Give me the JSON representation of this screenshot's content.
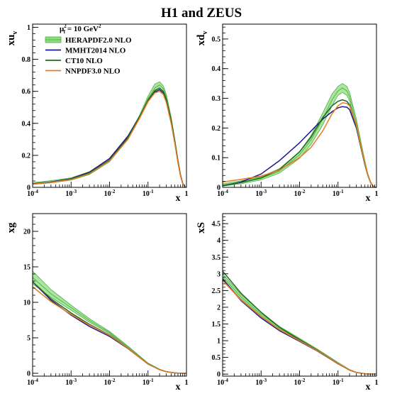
{
  "title": "H1 and ZEUS",
  "chart_data": [
    {
      "type": "line",
      "panel": "top-left",
      "ylabel": "xu_v",
      "xlabel": "x",
      "xscale": "log",
      "xlim": [
        0.0001,
        1
      ],
      "ylim": [
        0,
        1.02
      ],
      "x_ticks": [
        {
          "v": 0.0001,
          "b": "10",
          "e": "-4"
        },
        {
          "v": 0.001,
          "b": "10",
          "e": "-3"
        },
        {
          "v": 0.01,
          "b": "10",
          "e": "-2"
        },
        {
          "v": 0.1,
          "b": "10",
          "e": "-1"
        },
        {
          "v": 1,
          "b": "1",
          "e": ""
        }
      ],
      "y_ticks": [
        {
          "v": 0,
          "label": "0"
        },
        {
          "v": 0.2,
          "label": "0.2"
        },
        {
          "v": 0.4,
          "label": "0.4"
        },
        {
          "v": 0.6,
          "label": "0.6"
        },
        {
          "v": 0.8,
          "label": "0.8"
        },
        {
          "v": 1,
          "label": "1"
        }
      ],
      "legend": {
        "position": "top-left",
        "scale_base": "μ",
        "scale_sub": "f",
        "scale_sup": "2",
        "scale_tail": " = 10 GeV",
        "scale_tail_sup": "2",
        "entries": [
          "HERAPDF2.0 NLO",
          "MMHT2014 NLO",
          "CT10 NLO",
          "NNPDF3.0 NLO"
        ]
      },
      "x": [
        0.0001,
        0.0003,
        0.001,
        0.003,
        0.01,
        0.03,
        0.06,
        0.1,
        0.15,
        0.2,
        0.25,
        0.3,
        0.4,
        0.5,
        0.6,
        0.7,
        0.8,
        0.9,
        1.0
      ],
      "band": {
        "lower": [
          0.018,
          0.028,
          0.045,
          0.08,
          0.16,
          0.3,
          0.43,
          0.54,
          0.6,
          0.62,
          0.6,
          0.55,
          0.42,
          0.28,
          0.16,
          0.07,
          0.02,
          0.004,
          0
        ],
        "upper": [
          0.03,
          0.042,
          0.06,
          0.098,
          0.18,
          0.32,
          0.45,
          0.57,
          0.645,
          0.66,
          0.635,
          0.58,
          0.44,
          0.3,
          0.18,
          0.085,
          0.028,
          0.006,
          0
        ]
      },
      "series": [
        {
          "name": "HERAPDF2.0 NLO",
          "color": "#5ab44a",
          "values": [
            0.024,
            0.035,
            0.052,
            0.089,
            0.17,
            0.31,
            0.44,
            0.555,
            0.62,
            0.64,
            0.618,
            0.565,
            0.43,
            0.29,
            0.17,
            0.078,
            0.024,
            0.005,
            0
          ]
        },
        {
          "name": "MMHT2014 NLO",
          "color": "#1a1a8c",
          "values": [
            0.022,
            0.034,
            0.054,
            0.095,
            0.18,
            0.32,
            0.44,
            0.54,
            0.595,
            0.61,
            0.59,
            0.54,
            0.41,
            0.28,
            0.16,
            0.075,
            0.024,
            0.005,
            0
          ]
        },
        {
          "name": "CT10 NLO",
          "color": "#1e6b1e",
          "values": [
            0.02,
            0.032,
            0.051,
            0.09,
            0.17,
            0.31,
            0.44,
            0.545,
            0.605,
            0.62,
            0.6,
            0.55,
            0.42,
            0.285,
            0.165,
            0.076,
            0.024,
            0.005,
            0
          ]
        },
        {
          "name": "NNPDF3.0 NLO",
          "color": "#e87a22",
          "values": [
            0.02,
            0.031,
            0.048,
            0.085,
            0.165,
            0.3,
            0.43,
            0.535,
            0.59,
            0.6,
            0.58,
            0.53,
            0.4,
            0.27,
            0.155,
            0.07,
            0.022,
            0.004,
            0
          ]
        }
      ]
    },
    {
      "type": "line",
      "panel": "top-right",
      "ylabel": "xd_v",
      "xlabel": "x",
      "xscale": "log",
      "xlim": [
        0.0001,
        1
      ],
      "ylim": [
        0,
        0.55
      ],
      "x_ticks": [
        {
          "v": 0.0001,
          "b": "10",
          "e": "-4"
        },
        {
          "v": 0.001,
          "b": "10",
          "e": "-3"
        },
        {
          "v": 0.01,
          "b": "10",
          "e": "-2"
        },
        {
          "v": 0.1,
          "b": "10",
          "e": "-1"
        },
        {
          "v": 1,
          "b": "1",
          "e": ""
        }
      ],
      "y_ticks": [
        {
          "v": 0,
          "label": "0"
        },
        {
          "v": 0.1,
          "label": "0.1"
        },
        {
          "v": 0.2,
          "label": "0.2"
        },
        {
          "v": 0.3,
          "label": "0.3"
        },
        {
          "v": 0.4,
          "label": "0.4"
        },
        {
          "v": 0.5,
          "label": "0.5"
        }
      ],
      "x": [
        0.0001,
        0.0003,
        0.001,
        0.003,
        0.01,
        0.02,
        0.04,
        0.07,
        0.1,
        0.13,
        0.17,
        0.2,
        0.3,
        0.4,
        0.5,
        0.6,
        0.7,
        0.8,
        0.9,
        1.0
      ],
      "band": {
        "lower": [
          0.004,
          0.012,
          0.025,
          0.048,
          0.098,
          0.145,
          0.21,
          0.275,
          0.31,
          0.32,
          0.31,
          0.29,
          0.205,
          0.13,
          0.075,
          0.038,
          0.016,
          0.005,
          0.001,
          0
        ],
        "upper": [
          0.012,
          0.022,
          0.036,
          0.063,
          0.12,
          0.175,
          0.25,
          0.315,
          0.34,
          0.35,
          0.34,
          0.32,
          0.23,
          0.15,
          0.09,
          0.046,
          0.02,
          0.006,
          0.001,
          0
        ]
      },
      "series": [
        {
          "name": "HERAPDF2.0 NLO",
          "color": "#5ab44a",
          "values": [
            0.008,
            0.017,
            0.03,
            0.055,
            0.11,
            0.16,
            0.23,
            0.295,
            0.325,
            0.335,
            0.325,
            0.305,
            0.218,
            0.14,
            0.082,
            0.042,
            0.018,
            0.005,
            0.001,
            0
          ]
        },
        {
          "name": "MMHT2014 NLO",
          "color": "#1a1a8c",
          "values": [
            0.005,
            0.018,
            0.045,
            0.09,
            0.15,
            0.19,
            0.23,
            0.255,
            0.268,
            0.272,
            0.27,
            0.262,
            0.2,
            0.13,
            0.076,
            0.04,
            0.017,
            0.005,
            0.001,
            0
          ]
        },
        {
          "name": "CT10 NLO",
          "color": "#1e6b1e",
          "values": [
            0.006,
            0.016,
            0.032,
            0.06,
            0.12,
            0.17,
            0.235,
            0.275,
            0.29,
            0.295,
            0.29,
            0.278,
            0.205,
            0.132,
            0.078,
            0.04,
            0.017,
            0.005,
            0.001,
            0
          ]
        },
        {
          "name": "NNPDF3.0 NLO",
          "color": "#e87a22",
          "values": [
            0.018,
            0.027,
            0.038,
            0.058,
            0.1,
            0.135,
            0.19,
            0.248,
            0.275,
            0.285,
            0.283,
            0.275,
            0.21,
            0.135,
            0.08,
            0.042,
            0.018,
            0.005,
            0.001,
            0
          ]
        }
      ]
    },
    {
      "type": "line",
      "panel": "bottom-left",
      "ylabel": "xg",
      "xlabel": "x",
      "xscale": "log",
      "xlim": [
        0.0001,
        1
      ],
      "ylim": [
        -0.4,
        22.5
      ],
      "x_ticks": [
        {
          "v": 0.0001,
          "b": "10",
          "e": "-4"
        },
        {
          "v": 0.001,
          "b": "10",
          "e": "-3"
        },
        {
          "v": 0.01,
          "b": "10",
          "e": "-2"
        },
        {
          "v": 0.1,
          "b": "10",
          "e": "-1"
        },
        {
          "v": 1,
          "b": "1",
          "e": ""
        }
      ],
      "y_ticks": [
        {
          "v": 0,
          "label": "0"
        },
        {
          "v": 5,
          "label": "5"
        },
        {
          "v": 10,
          "label": "10"
        },
        {
          "v": 15,
          "label": "15"
        },
        {
          "v": 20,
          "label": "20"
        }
      ],
      "x": [
        0.0001,
        0.0003,
        0.001,
        0.003,
        0.01,
        0.03,
        0.1,
        0.2,
        0.3,
        0.5,
        0.7,
        1.0
      ],
      "band": {
        "lower": [
          12.6,
          10.7,
          8.9,
          7.2,
          5.6,
          3.6,
          1.3,
          0.5,
          0.22,
          0.05,
          0.01,
          0
        ],
        "upper": [
          14.4,
          11.8,
          9.6,
          7.7,
          5.9,
          3.85,
          1.45,
          0.58,
          0.26,
          0.06,
          0.01,
          0
        ]
      },
      "series": [
        {
          "name": "HERAPDF2.0 NLO",
          "color": "#5ab44a",
          "values": [
            13.5,
            11.2,
            9.25,
            7.45,
            5.75,
            3.72,
            1.37,
            0.54,
            0.24,
            0.055,
            0.01,
            0
          ]
        },
        {
          "name": "MMHT2014 NLO",
          "color": "#1a1a8c",
          "values": [
            12.9,
            10.3,
            8.2,
            6.6,
            5.2,
            3.5,
            1.3,
            0.5,
            0.22,
            0.05,
            0.01,
            0
          ]
        },
        {
          "name": "CT10 NLO",
          "color": "#1e6b1e",
          "values": [
            12.9,
            10.5,
            8.5,
            6.9,
            5.4,
            3.55,
            1.32,
            0.52,
            0.23,
            0.05,
            0.01,
            0
          ]
        },
        {
          "name": "NNPDF3.0 NLO",
          "color": "#e87a22",
          "values": [
            12.2,
            10.1,
            8.3,
            6.8,
            5.35,
            3.55,
            1.3,
            0.5,
            0.22,
            0.05,
            0.01,
            0
          ]
        }
      ]
    },
    {
      "type": "line",
      "panel": "bottom-right",
      "ylabel": "xS",
      "xlabel": "x",
      "xscale": "log",
      "xlim": [
        0.0001,
        1
      ],
      "ylim": [
        -0.06,
        4.8
      ],
      "x_ticks": [
        {
          "v": 0.0001,
          "b": "10",
          "e": "-4"
        },
        {
          "v": 0.001,
          "b": "10",
          "e": "-3"
        },
        {
          "v": 0.01,
          "b": "10",
          "e": "-2"
        },
        {
          "v": 0.1,
          "b": "10",
          "e": "-1"
        },
        {
          "v": 1,
          "b": "1",
          "e": ""
        }
      ],
      "y_ticks": [
        {
          "v": 0,
          "label": "0"
        },
        {
          "v": 0.5,
          "label": "0.5"
        },
        {
          "v": 1,
          "label": "1"
        },
        {
          "v": 1.5,
          "label": "1.5"
        },
        {
          "v": 2,
          "label": "2"
        },
        {
          "v": 2.5,
          "label": "2.5"
        },
        {
          "v": 3,
          "label": "3"
        },
        {
          "v": 3.5,
          "label": "3.5"
        },
        {
          "v": 4,
          "label": "4"
        },
        {
          "v": 4.5,
          "label": "4.5"
        }
      ],
      "x": [
        0.0001,
        0.0003,
        0.001,
        0.003,
        0.01,
        0.03,
        0.1,
        0.2,
        0.3,
        0.5,
        0.7,
        1.0
      ],
      "band": {
        "lower": [
          2.82,
          2.25,
          1.75,
          1.36,
          1.02,
          0.7,
          0.32,
          0.12,
          0.05,
          0.01,
          0.001,
          0
        ],
        "upper": [
          3.0,
          2.38,
          1.85,
          1.43,
          1.07,
          0.74,
          0.35,
          0.14,
          0.06,
          0.012,
          0.002,
          0
        ]
      },
      "series": [
        {
          "name": "HERAPDF2.0 NLO",
          "color": "#5ab44a",
          "values": [
            2.91,
            2.31,
            1.8,
            1.4,
            1.05,
            0.72,
            0.33,
            0.13,
            0.055,
            0.011,
            0.002,
            0
          ]
        },
        {
          "name": "MMHT2014 NLO",
          "color": "#1a1a8c",
          "values": [
            2.85,
            2.2,
            1.68,
            1.3,
            0.98,
            0.68,
            0.31,
            0.12,
            0.05,
            0.01,
            0.001,
            0
          ]
        },
        {
          "name": "CT10 NLO",
          "color": "#1e6b1e",
          "values": [
            3.08,
            2.42,
            1.85,
            1.4,
            1.03,
            0.7,
            0.32,
            0.12,
            0.05,
            0.01,
            0.001,
            0
          ]
        },
        {
          "name": "NNPDF3.0 NLO",
          "color": "#e87a22",
          "values": [
            2.8,
            2.22,
            1.72,
            1.33,
            1.0,
            0.69,
            0.32,
            0.125,
            0.05,
            0.01,
            0.001,
            0
          ]
        }
      ]
    }
  ]
}
